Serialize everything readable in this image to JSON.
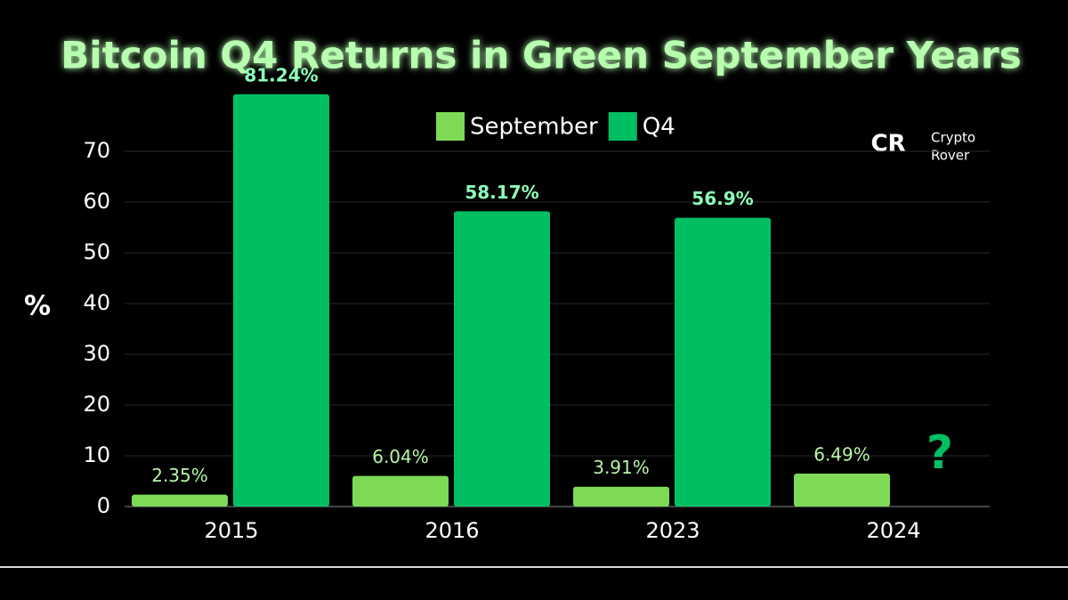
{
  "chart_data": {
    "type": "bar",
    "title": "Bitcoin Q4 Returns in Green September Years",
    "y_label": "%",
    "categories": [
      "2015",
      "2016",
      "2023",
      "2024"
    ],
    "series": [
      {
        "name": "September",
        "color": "#7ed957",
        "values": [
          2.35,
          6.04,
          3.91,
          6.49
        ],
        "value_labels": [
          "2.35%",
          "6.04%",
          "3.91%",
          "6.49%"
        ]
      },
      {
        "name": "Q4",
        "color": "#00bf63",
        "values": [
          81.24,
          58.17,
          56.9,
          null
        ],
        "value_labels": [
          "81.24%",
          "58.17%",
          "56.9%",
          null
        ]
      }
    ],
    "annotation": "?",
    "ylim": [
      0,
      85
    ],
    "yticks": [
      0,
      10,
      20,
      30,
      40,
      50,
      60,
      70
    ],
    "grid": true,
    "legend": "top",
    "watermark": {
      "logo": "CR",
      "text": [
        "Crypto",
        "Rover"
      ]
    }
  }
}
